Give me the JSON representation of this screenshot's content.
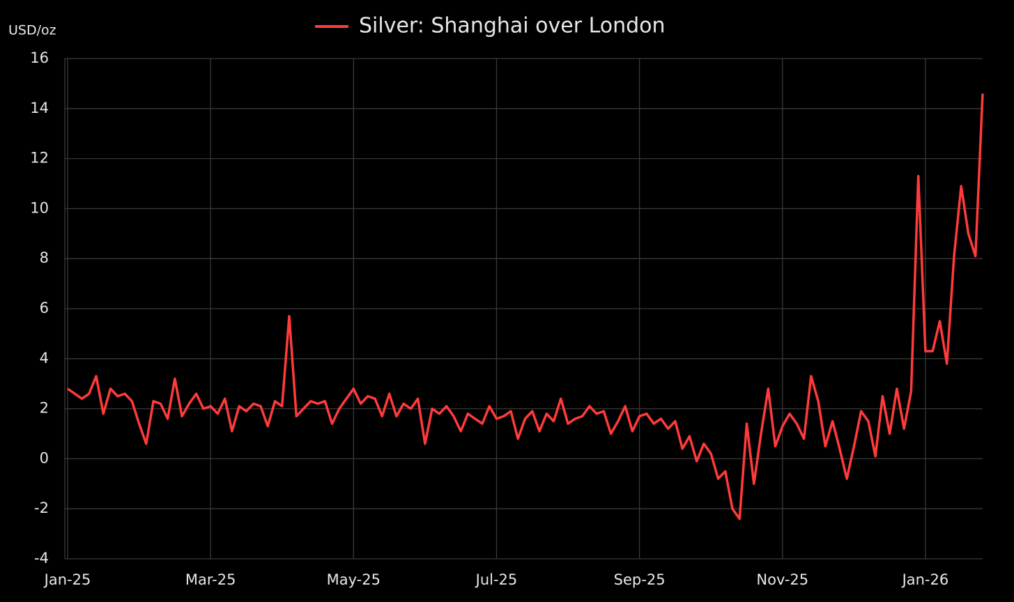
{
  "chart_data": {
    "type": "line",
    "y_label": "USD/oz",
    "categories": [
      "Jan-25",
      null,
      null,
      null,
      null,
      null,
      null,
      null,
      null,
      null,
      null,
      null,
      null,
      null,
      null,
      null,
      null,
      null,
      null,
      null,
      "Mar-25",
      null,
      null,
      null,
      null,
      null,
      null,
      null,
      null,
      null,
      null,
      null,
      null,
      null,
      null,
      null,
      null,
      null,
      null,
      null,
      "May-25",
      null,
      null,
      null,
      null,
      null,
      null,
      null,
      null,
      null,
      null,
      null,
      null,
      null,
      null,
      null,
      null,
      null,
      null,
      null,
      "Jul-25",
      null,
      null,
      null,
      null,
      null,
      null,
      null,
      null,
      null,
      null,
      null,
      null,
      null,
      null,
      null,
      null,
      null,
      null,
      null,
      "Sep-25",
      null,
      null,
      null,
      null,
      null,
      null,
      null,
      null,
      null,
      null,
      null,
      null,
      null,
      null,
      null,
      null,
      null,
      null,
      null,
      "Nov-25",
      null,
      null,
      null,
      null,
      null,
      null,
      null,
      null,
      null,
      null,
      null,
      null,
      null,
      null,
      null,
      null,
      null,
      null,
      null,
      "Jan-26",
      null,
      null,
      null,
      null,
      null,
      null,
      null,
      null
    ],
    "series": [
      {
        "name": "Silver: Shanghai over London",
        "color": "#ff3b3b",
        "values": [
          2.8,
          2.6,
          2.4,
          2.6,
          3.3,
          1.8,
          2.8,
          2.5,
          2.6,
          2.3,
          1.4,
          0.6,
          2.3,
          2.2,
          1.6,
          3.2,
          1.7,
          2.2,
          2.6,
          2.0,
          2.1,
          1.8,
          2.4,
          1.1,
          2.1,
          1.9,
          2.2,
          2.1,
          1.3,
          2.3,
          2.1,
          5.7,
          1.7,
          2.0,
          2.3,
          2.2,
          2.3,
          1.4,
          2.0,
          2.4,
          2.8,
          2.2,
          2.5,
          2.4,
          1.7,
          2.6,
          1.7,
          2.2,
          2.0,
          2.4,
          0.6,
          2.0,
          1.8,
          2.1,
          1.7,
          1.1,
          1.8,
          1.6,
          1.4,
          2.1,
          1.6,
          1.7,
          1.9,
          0.8,
          1.6,
          1.9,
          1.1,
          1.8,
          1.5,
          2.4,
          1.4,
          1.6,
          1.7,
          2.1,
          1.8,
          1.9,
          1.0,
          1.5,
          2.1,
          1.1,
          1.7,
          1.8,
          1.4,
          1.6,
          1.2,
          1.5,
          0.4,
          0.9,
          -0.1,
          0.6,
          0.2,
          -0.8,
          -0.5,
          -2.0,
          -2.4,
          1.4,
          -1.0,
          1.0,
          2.8,
          0.5,
          1.3,
          1.8,
          1.4,
          0.8,
          3.3,
          2.3,
          0.5,
          1.5,
          0.4,
          -0.8,
          0.5,
          1.9,
          1.5,
          0.1,
          2.5,
          1.0,
          2.8,
          1.2,
          2.7,
          11.3,
          4.3,
          4.3,
          5.5,
          3.8,
          8.1,
          10.9,
          9.0,
          8.1,
          14.6
        ]
      }
    ],
    "ylim": [
      -4,
      16
    ],
    "yticks": [
      -4,
      -2,
      0,
      2,
      4,
      6,
      8,
      10,
      12,
      14,
      16
    ],
    "grid": true,
    "legend": "top"
  }
}
